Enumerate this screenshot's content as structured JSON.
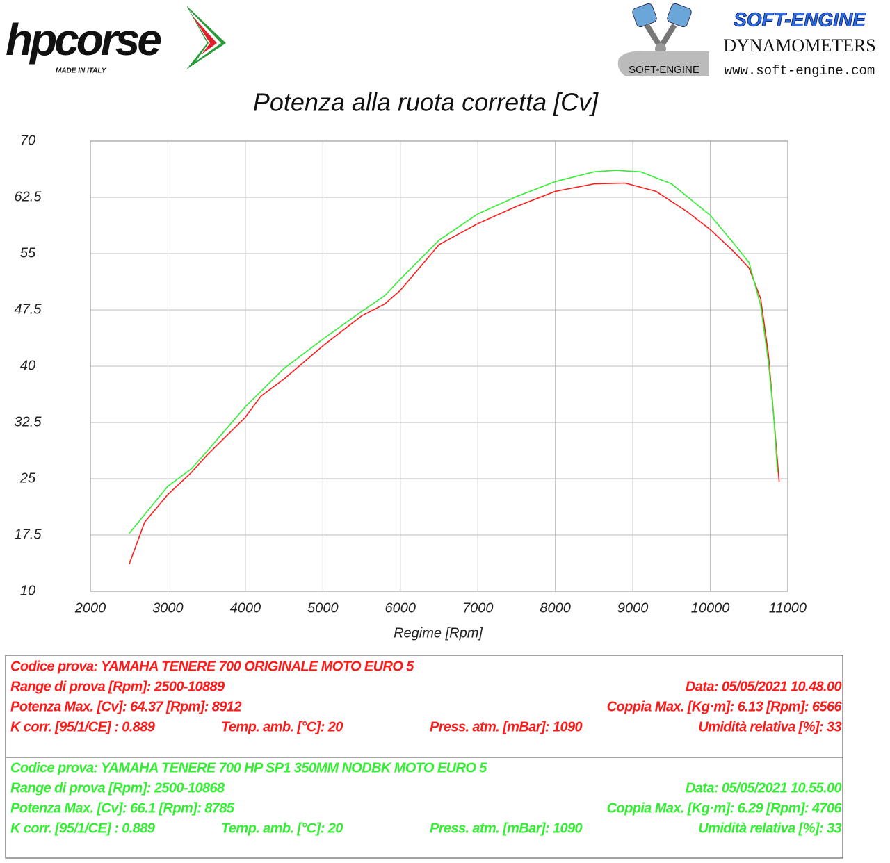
{
  "header": {
    "brand": "hpcorse",
    "brand_tagline": "MADE IN ITALY",
    "dyno_brand": "SOFT-ENGINE",
    "dyno_subtitle": "DYNAMOMETERS",
    "dyno_logo_text": "SOFT-ENGINE",
    "dyno_url": "www.soft-engine.com"
  },
  "chart_data": {
    "type": "line",
    "title": "Potenza alla ruota corretta [Cv]",
    "x_label": "Regime [Rpm]",
    "xlim": [
      2000,
      11000
    ],
    "xticks": [
      2000,
      3000,
      4000,
      5000,
      6000,
      7000,
      8000,
      9000,
      10000,
      11000
    ],
    "ylim": [
      10,
      70
    ],
    "yticks": [
      10,
      17.5,
      25,
      32.5,
      40,
      47.5,
      55,
      62.5,
      70
    ],
    "grid": true,
    "series": [
      {
        "color": "#ff1a1a",
        "x": [
          2500,
          2700,
          3000,
          3300,
          3500,
          4000,
          4200,
          4500,
          5000,
          5500,
          5800,
          6000,
          6500,
          7000,
          7500,
          8000,
          8500,
          8900,
          9300,
          9700,
          10000,
          10300,
          10500,
          10650,
          10750,
          10820,
          10889
        ],
        "values": [
          13.6,
          19.2,
          22.9,
          25.8,
          28.1,
          33.2,
          36.0,
          38.3,
          42.7,
          46.7,
          48.3,
          50.1,
          56.2,
          59.0,
          61.3,
          63.3,
          64.3,
          64.4,
          63.3,
          60.6,
          58.2,
          55.3,
          53.1,
          49.0,
          41.6,
          33.2,
          24.6
        ]
      },
      {
        "color": "#33ee33",
        "x": [
          2500,
          3000,
          3300,
          3500,
          4000,
          4500,
          5000,
          5500,
          5800,
          6000,
          6500,
          7000,
          7500,
          8000,
          8500,
          8785,
          9100,
          9500,
          10000,
          10300,
          10500,
          10650,
          10750,
          10820,
          10868
        ],
        "values": [
          17.7,
          24.0,
          26.3,
          28.6,
          34.6,
          39.7,
          43.6,
          47.3,
          49.4,
          51.6,
          56.8,
          60.3,
          62.6,
          64.6,
          65.9,
          66.1,
          65.9,
          64.3,
          60.1,
          56.4,
          53.8,
          48.1,
          40.6,
          33.2,
          25.8
        ]
      }
    ]
  },
  "tests": [
    {
      "color": "#ff1a1a",
      "lines": [
        [
          "Codice prova: YAMAHA TENERE 700 ORIGINALE  MOTO EURO 5"
        ],
        [
          "Range di prova [Rpm]: 2500-10889",
          "Data: 05/05/2021   10.48.00"
        ],
        [
          "Potenza Max. [Cv]: 64.37   [Rpm]: 8912",
          "Coppia Max. [Kg·m]: 6.13   [Rpm]: 6566"
        ],
        [
          "K corr. [95/1/CE] : 0.889",
          "Temp. amb. [°C]: 20",
          "Press. atm. [mBar]: 1090",
          "Umidità relativa [%]: 33"
        ]
      ]
    },
    {
      "color": "#33ee33",
      "lines": [
        [
          "Codice prova: YAMAHA TENERE 700 HP SP1 350MM NODBK  MOTO EURO 5"
        ],
        [
          "Range di prova [Rpm]: 2500-10868",
          "Data: 05/05/2021   10.55.00"
        ],
        [
          "Potenza Max. [Cv]: 66.1   [Rpm]: 8785",
          "Coppia Max. [Kg·m]: 6.29   [Rpm]: 4706"
        ],
        [
          "K corr. [95/1/CE] : 0.889",
          "Temp. amb. [°C]: 20",
          "Press. atm. [mBar]: 1090",
          "Umidità relativa [%]: 33"
        ]
      ]
    }
  ]
}
